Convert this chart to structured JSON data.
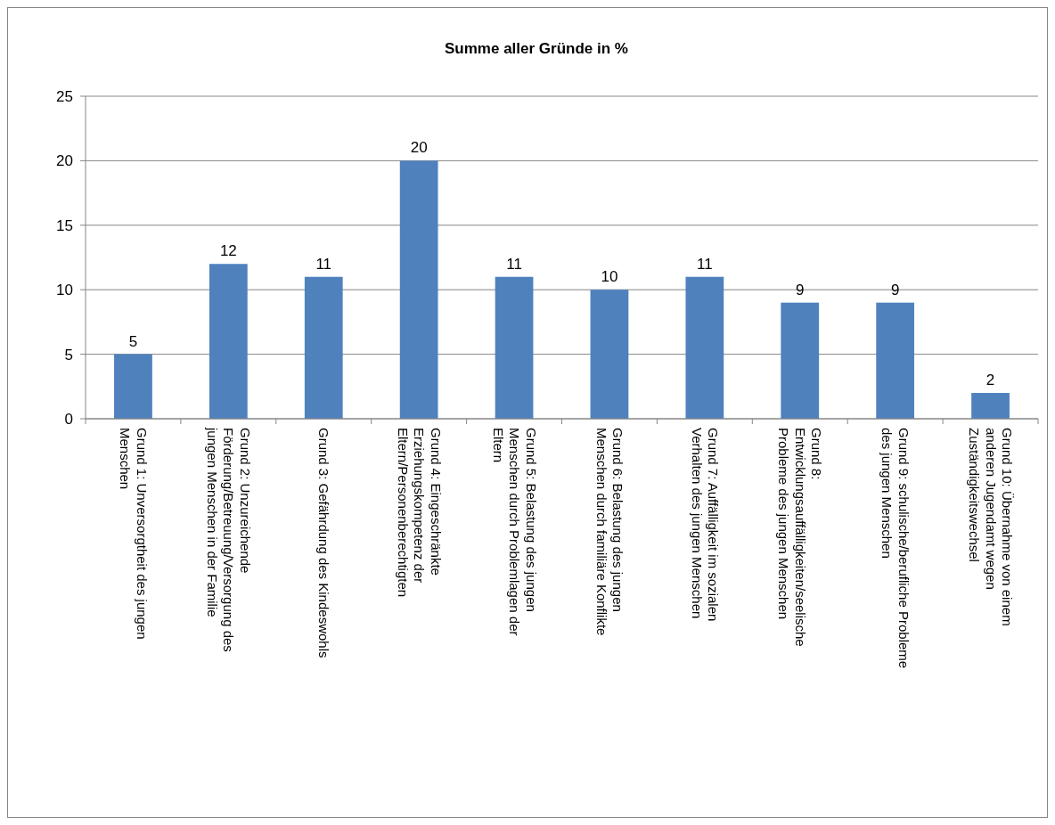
{
  "chart_data": {
    "type": "bar",
    "title": "Summe aller Gründe in %",
    "categories": [
      "Grund 1: Unversorgtheit des jungen Menschen",
      "Grund 2: Unzureichende Förderung/Betreuung/Versorgung des jungen Menschen in der Familie",
      "Grund 3: Gefährdung des Kindeswohls",
      "Grund 4: Eingeschränkte Erziehungskompetenz der Eltern/Personenberechtigten",
      "Grund 5: Belastung des jungen Menschen durch Problemlagen der Eltern",
      "Grund 6: Belastung des jungen Menschen durch familiäre Konflikte",
      "Grund 7: Auffälligkeit im sozialen Verhalten des jungen Menschen",
      "Grund 8: Entwicklungsauffälligkeiten/seelische Probleme des jungen Menschen",
      "Grund 9: schulische/berufliche Probleme des jungen Menschen",
      "Grund 10: Übernahme von einem anderen Jugendamt wegen Zuständigkeitswechsel"
    ],
    "values": [
      5,
      12,
      11,
      20,
      11,
      10,
      11,
      9,
      9,
      2
    ],
    "color": "#4f81bd",
    "ylim": [
      0,
      25
    ],
    "yticks": [
      0,
      5,
      10,
      15,
      20,
      25
    ],
    "grid": "y",
    "data_labels": true
  }
}
